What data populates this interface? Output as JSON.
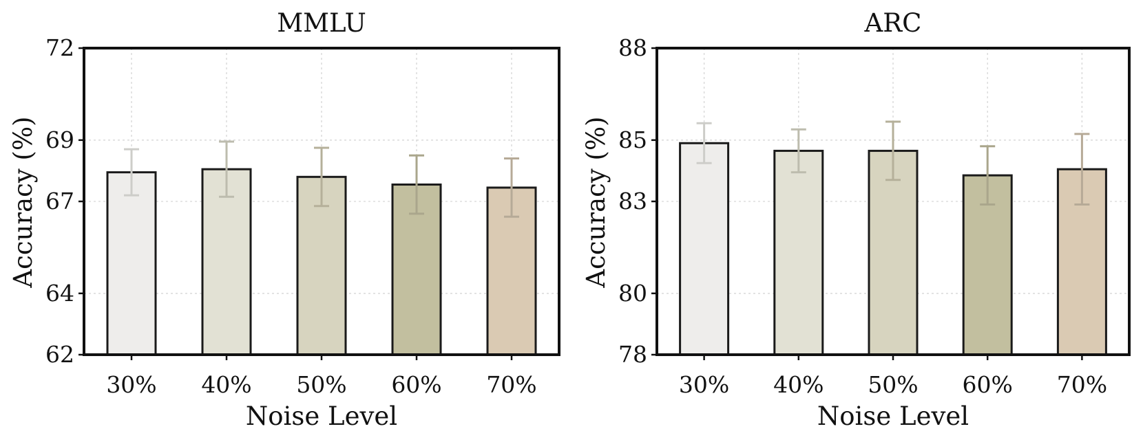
{
  "chart_data": [
    {
      "type": "bar",
      "title": "MMLU",
      "xlabel": "Noise Level",
      "ylabel": "Accuracy (%)",
      "categories": [
        "30%",
        "40%",
        "50%",
        "60%",
        "70%"
      ],
      "values": [
        67.95,
        68.05,
        67.8,
        67.55,
        67.45
      ],
      "errors": [
        0.75,
        0.9,
        0.95,
        0.95,
        0.95
      ],
      "ylim": [
        62,
        72
      ],
      "yticks": [
        62,
        64,
        67,
        69,
        72
      ],
      "ytick_labels": [
        "62",
        "64",
        "67",
        "69",
        "72"
      ],
      "grid": true,
      "bar_colors": [
        "#eeedeb",
        "#e2e1d4",
        "#d7d4bf",
        "#c2bf9f",
        "#dacab3"
      ],
      "error_colors": [
        "#cdcdc9",
        "#bdbcae",
        "#b5b09a",
        "#aaa68c",
        "#b6aa97"
      ]
    },
    {
      "type": "bar",
      "title": "ARC",
      "xlabel": "Noise Level",
      "ylabel": "Accuracy (%)",
      "categories": [
        "30%",
        "40%",
        "50%",
        "60%",
        "70%"
      ],
      "values": [
        84.9,
        84.65,
        84.65,
        83.85,
        84.05
      ],
      "errors": [
        0.65,
        0.7,
        0.95,
        0.95,
        1.15
      ],
      "ylim": [
        78,
        88
      ],
      "yticks": [
        78,
        80,
        83,
        85,
        88
      ],
      "ytick_labels": [
        "78",
        "80",
        "83",
        "85",
        "88"
      ],
      "grid": true,
      "bar_colors": [
        "#eeedeb",
        "#e2e1d4",
        "#d7d4bf",
        "#c2bf9f",
        "#dacab3"
      ],
      "error_colors": [
        "#cdcdc9",
        "#bdbcae",
        "#b5b09a",
        "#aaa68c",
        "#b6aa97"
      ]
    }
  ]
}
